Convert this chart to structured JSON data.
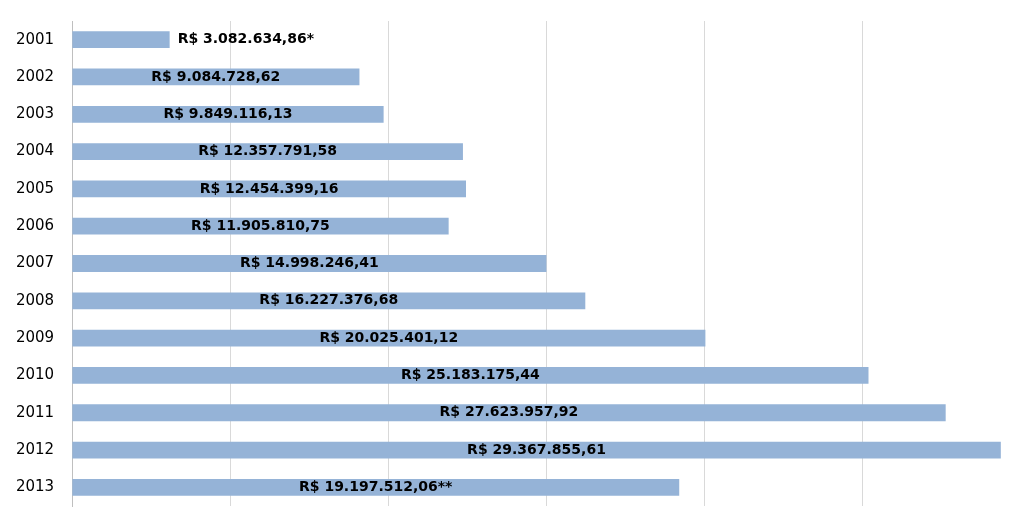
{
  "chart_data": {
    "type": "bar",
    "orientation": "horizontal",
    "categories": [
      "2001",
      "2002",
      "2003",
      "2004",
      "2005",
      "2006",
      "2007",
      "2008",
      "2009",
      "2010",
      "2011",
      "2012",
      "2013"
    ],
    "values": [
      3082634.86,
      9084728.62,
      9849116.13,
      12357791.58,
      12454399.16,
      11905810.75,
      14998246.41,
      16227376.68,
      20025401.12,
      25183175.44,
      27623957.92,
      29367855.61,
      19197512.06
    ],
    "value_labels": [
      "R$ 3.082.634,86*",
      "R$ 9.084.728,62",
      "R$ 9.849.116,13",
      "R$ 12.357.791,58",
      "R$ 12.454.399,16",
      "R$ 11.905.810,75",
      "R$ 14.998.246,41",
      "R$ 16.227.376,68",
      "R$ 20.025.401,12",
      "R$ 25.183.175,44",
      "R$ 27.623.957,92",
      "R$ 29.367.855,61",
      "R$ 19.197.512,06**"
    ],
    "color": "#95b3d7",
    "xlim": [
      0,
      29500000
    ],
    "xticks": [
      {
        "value": 5000000,
        "label": null
      },
      {
        "value": 10000000,
        "label": null
      },
      {
        "value": 15000000,
        "label": null
      },
      {
        "value": 20000000,
        "label": null
      },
      {
        "value": 25000000,
        "label": null
      }
    ],
    "grid": "x",
    "tick_labels": "y"
  }
}
